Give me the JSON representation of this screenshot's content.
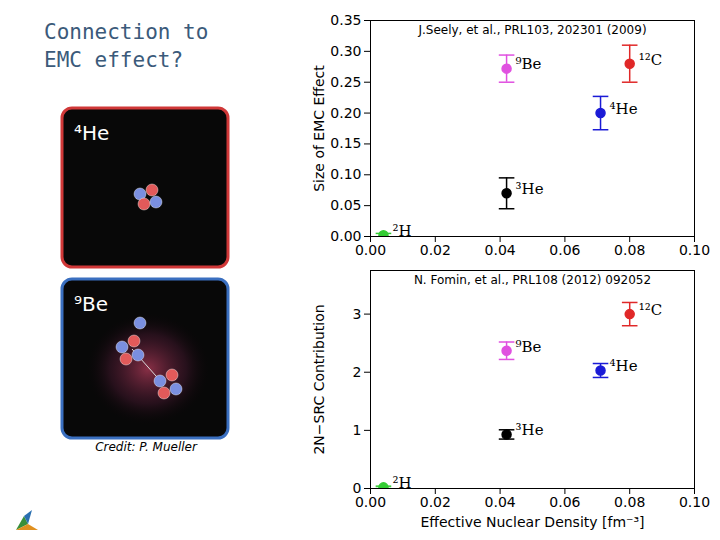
{
  "slide": {
    "title": "Connection to EMC effect?",
    "images": [
      {
        "label": "⁴He"
      },
      {
        "label": "⁹Be"
      }
    ],
    "credit": "Credit: P. Mueller"
  },
  "chart_data": [
    {
      "type": "scatter",
      "annotation": "J.Seely, et al., PRL103, 202301 (2009)",
      "y_label": "Size of EMC Effect",
      "labels": [
        "²H",
        "³He",
        "⁹Be",
        "⁴He",
        "¹²C"
      ],
      "x": [
        0.004,
        0.042,
        0.042,
        0.071,
        0.08
      ],
      "values": [
        0.002,
        0.07,
        0.272,
        0.2,
        0.28
      ],
      "errors": [
        0.003,
        0.025,
        0.022,
        0.027,
        0.03
      ],
      "colors": [
        "#33cc33",
        "#000000",
        "#e050e0",
        "#1a1ad6",
        "#e02828"
      ],
      "marker": "circle",
      "xlim": [
        0,
        0.1
      ],
      "xticks": [
        {
          "value": 0,
          "label": "0.00"
        },
        {
          "value": 0.02,
          "label": "0.02"
        },
        {
          "value": 0.04,
          "label": "0.04"
        },
        {
          "value": 0.06,
          "label": "0.06"
        },
        {
          "value": 0.08,
          "label": "0.08"
        },
        {
          "value": 0.1,
          "label": "0.10"
        }
      ],
      "ylim": [
        0,
        0.35
      ],
      "yticks": [
        {
          "value": 0,
          "label": "0.00"
        },
        {
          "value": 0.05,
          "label": "0.05"
        },
        {
          "value": 0.1,
          "label": "0.10"
        },
        {
          "value": 0.15,
          "label": "0.15"
        },
        {
          "value": 0.2,
          "label": "0.20"
        },
        {
          "value": 0.25,
          "label": "0.25"
        },
        {
          "value": 0.3,
          "label": "0.30"
        },
        {
          "value": 0.35,
          "label": "0.35"
        }
      ],
      "grid": false
    },
    {
      "type": "scatter",
      "annotation": "N. Fomin, et al., PRL108 (2012) 092052",
      "y_label": "2N−SRC Contribution",
      "x_label": "Effective Nuclear Density [fm⁻³]",
      "labels": [
        "²H",
        "³He",
        "⁹Be",
        "⁴He",
        "¹²C"
      ],
      "x": [
        0.004,
        0.042,
        0.042,
        0.071,
        0.08
      ],
      "values": [
        0.02,
        0.93,
        2.37,
        2.03,
        3.0
      ],
      "errors": [
        0.02,
        0.08,
        0.15,
        0.12,
        0.2
      ],
      "colors": [
        "#33cc33",
        "#000000",
        "#e050e0",
        "#1a1ad6",
        "#e02828"
      ],
      "marker": "circle",
      "xlim": [
        0,
        0.1
      ],
      "xticks": [
        {
          "value": 0,
          "label": "0.00"
        },
        {
          "value": 0.02,
          "label": "0.02"
        },
        {
          "value": 0.04,
          "label": "0.04"
        },
        {
          "value": 0.06,
          "label": "0.06"
        },
        {
          "value": 0.08,
          "label": "0.08"
        },
        {
          "value": 0.1,
          "label": "0.10"
        }
      ],
      "ylim": [
        0,
        3.75
      ],
      "yticks": [
        0,
        1,
        2,
        3
      ],
      "grid": false
    }
  ]
}
